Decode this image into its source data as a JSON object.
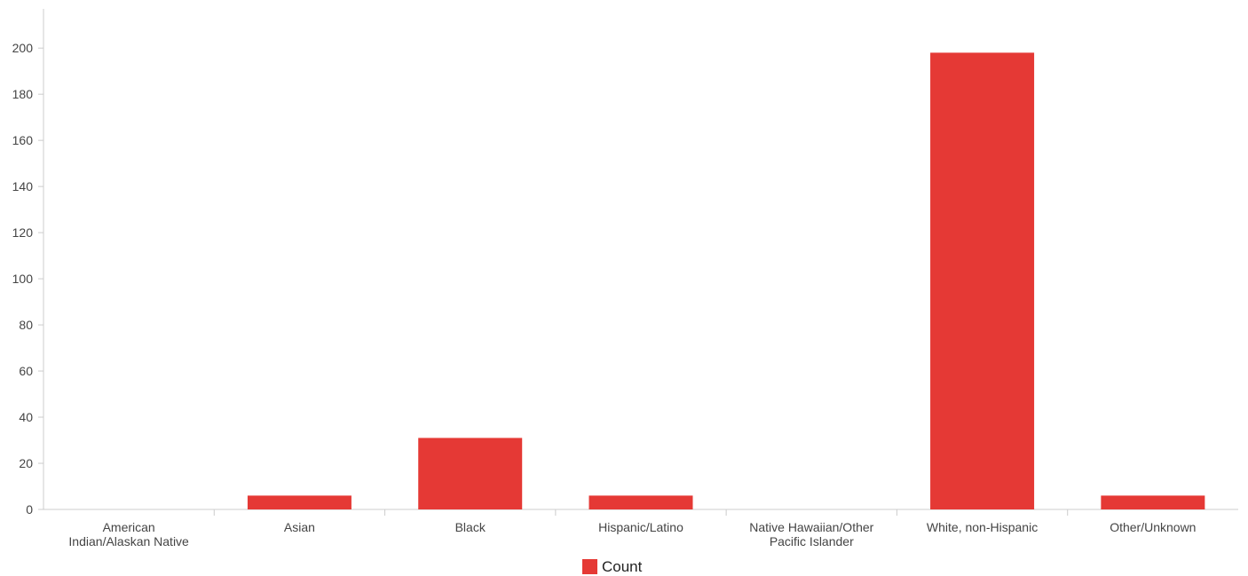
{
  "chart_data": {
    "type": "bar",
    "categories": [
      "American Indian/Alaskan Native",
      "Asian",
      "Black",
      "Hispanic/Latino",
      "Native Hawaiian/Other Pacific Islander",
      "White, non-Hispanic",
      "Other/Unknown"
    ],
    "category_label_lines": [
      [
        "American",
        "Indian/Alaskan Native"
      ],
      [
        "Asian"
      ],
      [
        "Black"
      ],
      [
        "Hispanic/Latino"
      ],
      [
        "Native Hawaiian/Other",
        "Pacific Islander"
      ],
      [
        "White, non-Hispanic"
      ],
      [
        "Other/Unknown"
      ]
    ],
    "series": [
      {
        "name": "Count",
        "values": [
          0,
          6,
          31,
          6,
          0,
          198,
          6
        ]
      }
    ],
    "yticks": [
      0,
      20,
      40,
      60,
      80,
      100,
      120,
      140,
      160,
      180,
      200
    ],
    "ylim": [
      0,
      217
    ],
    "title": "",
    "xlabel": "",
    "ylabel": "",
    "grid": false,
    "legend": "bottom-center",
    "colors": {
      "bar": "#e53935",
      "axis": "#cccccc",
      "text": "#444444"
    }
  }
}
